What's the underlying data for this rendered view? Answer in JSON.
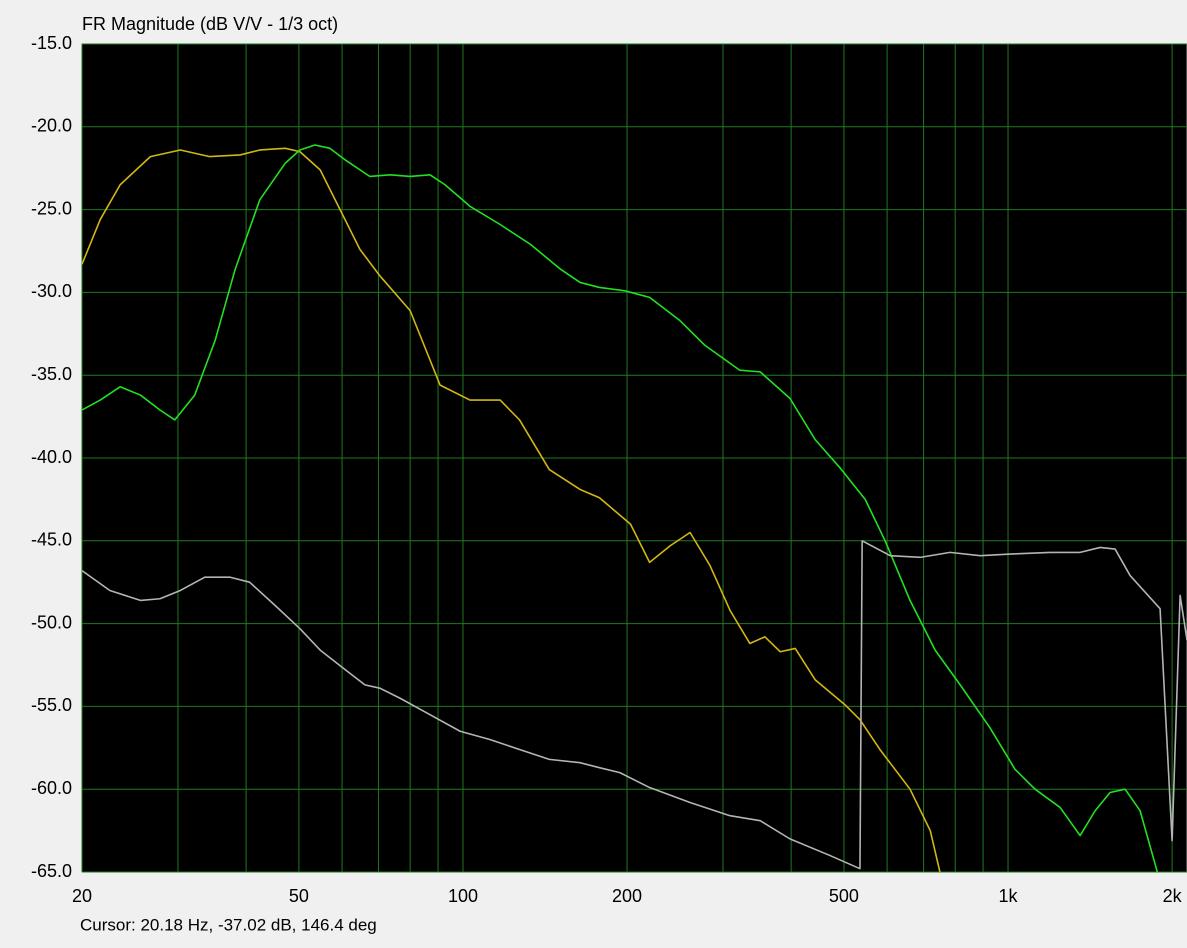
{
  "chart_data": {
    "type": "line",
    "title": "FR Magnitude (dB V/V - 1/3 oct)",
    "footer": "Cursor: 20.18 Hz, -37.02 dB, 146.4 deg",
    "log_x": true,
    "grid": true,
    "xlim": [
      20,
      2130
    ],
    "ylim": [
      -65,
      -15
    ],
    "xticks": [
      20,
      50,
      100,
      200,
      500,
      {
        "value": 1000,
        "label": "1k"
      },
      {
        "value": 2000,
        "label": "2k"
      }
    ],
    "minor_xticks": [
      30,
      40,
      60,
      70,
      80,
      90,
      300,
      400,
      600,
      700,
      800,
      900
    ],
    "yticks": [
      {
        "value": -15,
        "label": "-15.0"
      },
      {
        "value": -20,
        "label": "-20.0"
      },
      {
        "value": -25,
        "label": "-25.0"
      },
      {
        "value": -30,
        "label": "-30.0"
      },
      {
        "value": -35,
        "label": "-35.0"
      },
      {
        "value": -40,
        "label": "-40.0"
      },
      {
        "value": -45,
        "label": "-45.0"
      },
      {
        "value": -50,
        "label": "-50.0"
      },
      {
        "value": -55,
        "label": "-55.0"
      },
      {
        "value": -60,
        "label": "-60.0"
      },
      {
        "value": -65,
        "label": "-65.0"
      }
    ],
    "series": [
      {
        "color": "#d2b714",
        "x": [
          20,
          21.6,
          23.5,
          26.7,
          30.3,
          34.3,
          39.0,
          42.4,
          47.2,
          50.2,
          54.7,
          59.5,
          64.7,
          70.4,
          80.0,
          90.8,
          103,
          117,
          127,
          144,
          164,
          178,
          203,
          220,
          240,
          261,
          284,
          309,
          336,
          358,
          382,
          407,
          443,
          502,
          535,
          582,
          661,
          720,
          750
        ],
        "values": [
          -28.3,
          -25.6,
          -23.5,
          -21.8,
          -21.4,
          -21.8,
          -21.7,
          -21.4,
          -21.3,
          -21.5,
          -22.6,
          -25.0,
          -27.4,
          -29.0,
          -31.1,
          -35.6,
          -36.5,
          -36.5,
          -37.7,
          -40.7,
          -41.9,
          -42.4,
          -44.0,
          -46.3,
          -45.3,
          -44.5,
          -46.5,
          -49.2,
          -51.2,
          -50.8,
          -51.7,
          -51.5,
          -53.4,
          -54.9,
          -55.8,
          -57.6,
          -60.0,
          -62.5,
          -65.0
        ]
      },
      {
        "color": "#22e022",
        "x": [
          20,
          21.6,
          23.5,
          25.6,
          27.8,
          29.6,
          32.2,
          35.1,
          38.2,
          42.4,
          47.2,
          50.2,
          53.5,
          57.0,
          60.8,
          67.5,
          73.5,
          80.0,
          87.0,
          92.7,
          103,
          117,
          133,
          151,
          164,
          178,
          198,
          220,
          250,
          278,
          322,
          351,
          398,
          443,
          492,
          547,
          595,
          661,
          735,
          817,
          927,
          1030,
          1121,
          1246,
          1356,
          1445,
          1539,
          1640,
          1747,
          1879
        ],
        "values": [
          -37.1,
          -36.5,
          -35.7,
          -36.2,
          -37.1,
          -37.7,
          -36.2,
          -32.9,
          -28.6,
          -24.4,
          -22.2,
          -21.4,
          -21.1,
          -21.3,
          -22.0,
          -23.0,
          -22.9,
          -23.0,
          -22.9,
          -23.5,
          -24.8,
          -25.9,
          -27.1,
          -28.6,
          -29.4,
          -29.7,
          -29.9,
          -30.3,
          -31.7,
          -33.2,
          -34.7,
          -34.8,
          -36.4,
          -38.9,
          -40.6,
          -42.5,
          -45.0,
          -48.6,
          -51.6,
          -53.7,
          -56.3,
          -58.8,
          -60.0,
          -61.1,
          -62.8,
          -61.3,
          -60.2,
          -60.0,
          -61.3,
          -65.0
        ]
      },
      {
        "color": "#b4b4b4",
        "x": [
          20,
          22.5,
          25.6,
          27.8,
          30.3,
          33.6,
          37.4,
          40.6,
          45.2,
          50.2,
          54.7,
          62.0,
          66.1,
          70.4,
          76.6,
          87.0,
          98.8,
          112,
          127,
          144,
          164,
          178,
          194,
          220,
          261,
          309,
          351,
          398,
          471,
          535,
          540,
          608,
          690,
          783,
          889,
          1009,
          1194,
          1356,
          1476,
          1572,
          1675,
          1901,
          2000,
          2069,
          2130
        ],
        "values": [
          -46.8,
          -48.0,
          -48.6,
          -48.5,
          -48.0,
          -47.2,
          -47.2,
          -47.5,
          -48.9,
          -50.3,
          -51.6,
          -53.0,
          -53.7,
          -53.9,
          -54.5,
          -55.5,
          -56.5,
          -57.0,
          -57.6,
          -58.2,
          -58.4,
          -58.7,
          -59.0,
          -59.9,
          -60.8,
          -61.6,
          -61.9,
          -63.0,
          -64.0,
          -64.8,
          -45.0,
          -45.9,
          -46.0,
          -45.7,
          -45.9,
          -45.8,
          -45.7,
          -45.7,
          -45.4,
          -45.5,
          -47.1,
          -49.1,
          -63.1,
          -48.3,
          -51.0
        ]
      }
    ]
  }
}
